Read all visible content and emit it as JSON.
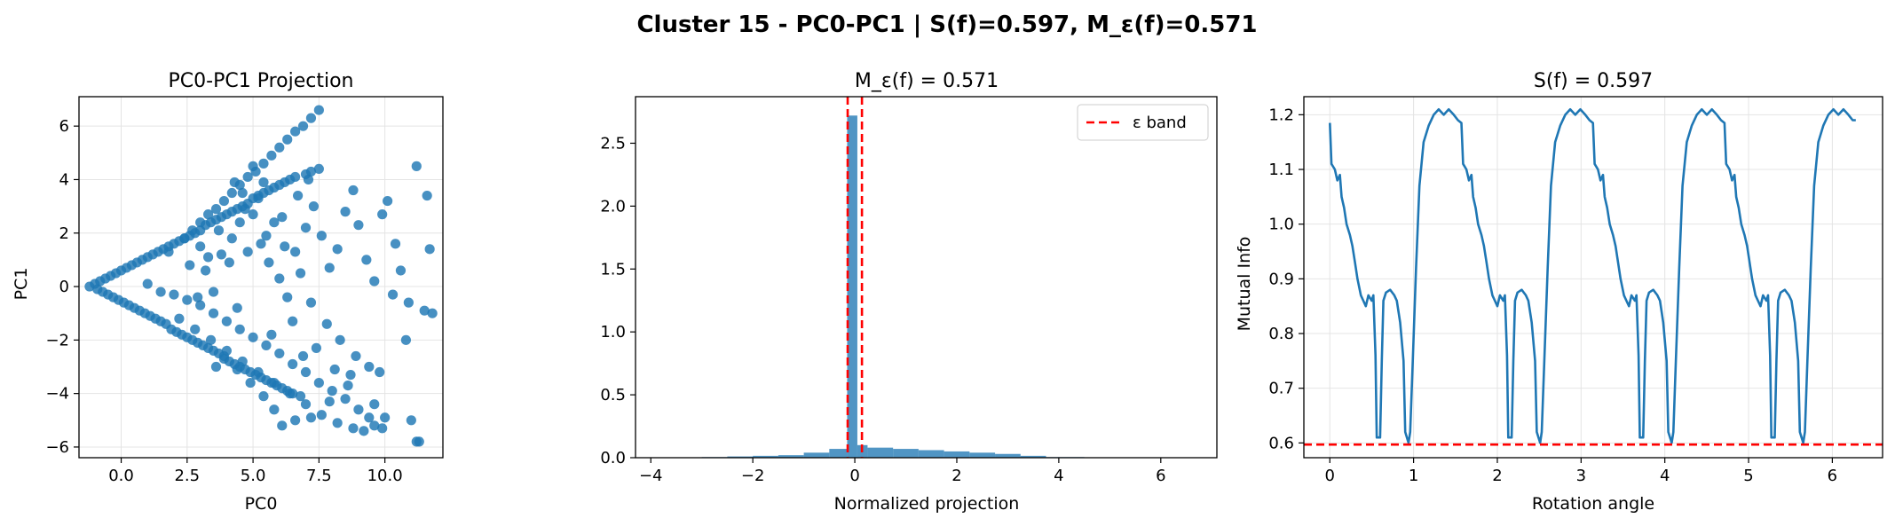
{
  "figure": {
    "suptitle": "Cluster 15 - PC0-PC1 | S(f)=0.597, M_ε(f)=0.571"
  },
  "chart_data": [
    {
      "type": "scatter",
      "title": "PC0-PC1 Projection",
      "xlabel": "PC0",
      "ylabel": "PC1",
      "xlim": [
        -1.6,
        12.2
      ],
      "ylim": [
        -6.4,
        7.1
      ],
      "xticks": [
        0.0,
        2.5,
        5.0,
        7.5,
        10.0
      ],
      "xtick_labels": [
        "0.0",
        "2.5",
        "5.0",
        "7.5",
        "10.0"
      ],
      "yticks": [
        -6,
        -4,
        -2,
        0,
        2,
        4,
        6
      ],
      "ytick_labels": [
        "−6",
        "−4",
        "−2",
        "0",
        "2",
        "4",
        "6"
      ],
      "grid": true,
      "color": "#1f77b4",
      "points": [
        [
          -1.2,
          0.0
        ],
        [
          -1.0,
          0.1
        ],
        [
          -0.9,
          -0.1
        ],
        [
          -0.8,
          0.2
        ],
        [
          -0.7,
          -0.2
        ],
        [
          -0.6,
          0.3
        ],
        [
          -0.5,
          -0.3
        ],
        [
          -0.4,
          0.4
        ],
        [
          -0.3,
          -0.4
        ],
        [
          -0.2,
          0.5
        ],
        [
          -0.1,
          -0.5
        ],
        [
          0.0,
          0.6
        ],
        [
          0.1,
          -0.6
        ],
        [
          0.2,
          0.7
        ],
        [
          0.3,
          -0.7
        ],
        [
          0.4,
          0.8
        ],
        [
          0.5,
          -0.8
        ],
        [
          0.6,
          0.9
        ],
        [
          0.7,
          -0.9
        ],
        [
          0.8,
          1.0
        ],
        [
          0.9,
          -1.0
        ],
        [
          1.0,
          1.1
        ],
        [
          1.1,
          -1.1
        ],
        [
          1.2,
          1.2
        ],
        [
          1.3,
          -1.2
        ],
        [
          1.4,
          1.3
        ],
        [
          1.5,
          -1.3
        ],
        [
          1.6,
          1.4
        ],
        [
          1.7,
          -1.4
        ],
        [
          1.8,
          1.5
        ],
        [
          1.9,
          -1.6
        ],
        [
          2.0,
          1.6
        ],
        [
          2.1,
          -1.7
        ],
        [
          2.2,
          1.7
        ],
        [
          2.3,
          -1.8
        ],
        [
          2.4,
          1.8
        ],
        [
          2.5,
          -1.9
        ],
        [
          2.6,
          1.9
        ],
        [
          2.7,
          -2.0
        ],
        [
          2.8,
          2.0
        ],
        [
          2.9,
          -2.1
        ],
        [
          3.0,
          2.1
        ],
        [
          3.1,
          -2.2
        ],
        [
          3.2,
          2.3
        ],
        [
          3.3,
          -2.3
        ],
        [
          3.4,
          2.4
        ],
        [
          3.5,
          -2.4
        ],
        [
          3.6,
          2.5
        ],
        [
          3.7,
          -2.5
        ],
        [
          3.8,
          2.6
        ],
        [
          3.9,
          -2.6
        ],
        [
          4.0,
          2.7
        ],
        [
          4.1,
          -2.8
        ],
        [
          4.2,
          2.8
        ],
        [
          4.3,
          -2.9
        ],
        [
          4.4,
          2.9
        ],
        [
          4.5,
          -3.0
        ],
        [
          4.6,
          3.0
        ],
        [
          4.7,
          -3.1
        ],
        [
          4.8,
          3.1
        ],
        [
          4.9,
          -3.2
        ],
        [
          5.0,
          3.3
        ],
        [
          5.1,
          -3.3
        ],
        [
          5.2,
          3.4
        ],
        [
          5.3,
          -3.4
        ],
        [
          5.4,
          3.5
        ],
        [
          5.5,
          -3.5
        ],
        [
          5.6,
          3.6
        ],
        [
          5.7,
          -3.6
        ],
        [
          5.8,
          3.7
        ],
        [
          5.9,
          -3.7
        ],
        [
          6.0,
          3.8
        ],
        [
          6.1,
          -3.8
        ],
        [
          6.2,
          3.9
        ],
        [
          6.3,
          -3.9
        ],
        [
          6.4,
          4.0
        ],
        [
          6.5,
          -4.0
        ],
        [
          6.6,
          4.1
        ],
        [
          6.8,
          -4.1
        ],
        [
          7.0,
          4.2
        ],
        [
          7.2,
          4.3
        ],
        [
          7.5,
          4.4
        ],
        [
          7.5,
          6.6
        ],
        [
          7.2,
          6.3
        ],
        [
          6.9,
          6.0
        ],
        [
          6.6,
          5.8
        ],
        [
          6.3,
          5.5
        ],
        [
          6.0,
          5.2
        ],
        [
          5.7,
          4.9
        ],
        [
          5.4,
          4.6
        ],
        [
          5.1,
          4.3
        ],
        [
          4.8,
          4.1
        ],
        [
          4.5,
          3.8
        ],
        [
          4.2,
          3.5
        ],
        [
          3.9,
          3.2
        ],
        [
          3.6,
          2.9
        ],
        [
          3.3,
          2.7
        ],
        [
          3.0,
          2.4
        ],
        [
          2.7,
          2.1
        ],
        [
          2.4,
          1.8
        ],
        [
          1.8,
          1.3
        ],
        [
          2.2,
          -1.2
        ],
        [
          2.8,
          -1.6
        ],
        [
          3.4,
          -2.0
        ],
        [
          4.0,
          -2.4
        ],
        [
          4.6,
          -2.8
        ],
        [
          5.2,
          -3.2
        ],
        [
          5.8,
          -3.6
        ],
        [
          6.4,
          -4.0
        ],
        [
          7.0,
          -4.4
        ],
        [
          7.6,
          -4.8
        ],
        [
          8.2,
          -5.1
        ],
        [
          8.8,
          -5.3
        ],
        [
          9.2,
          -5.4
        ],
        [
          9.6,
          -5.2
        ],
        [
          9.9,
          -5.3
        ],
        [
          9.4,
          -4.9
        ],
        [
          9.0,
          -4.6
        ],
        [
          8.5,
          -4.2
        ],
        [
          8.0,
          -3.9
        ],
        [
          7.5,
          -3.6
        ],
        [
          7.0,
          -3.2
        ],
        [
          6.5,
          -2.9
        ],
        [
          6.0,
          -2.5
        ],
        [
          5.5,
          -2.2
        ],
        [
          5.0,
          -1.9
        ],
        [
          4.5,
          -1.6
        ],
        [
          4.0,
          -1.3
        ],
        [
          3.5,
          -1.0
        ],
        [
          3.0,
          -0.7
        ],
        [
          2.5,
          -0.5
        ],
        [
          2.0,
          -0.3
        ],
        [
          1.5,
          -0.2
        ],
        [
          1.0,
          0.1
        ],
        [
          3.2,
          0.6
        ],
        [
          3.8,
          1.2
        ],
        [
          4.2,
          1.8
        ],
        [
          4.5,
          2.4
        ],
        [
          5.0,
          2.7
        ],
        [
          5.3,
          1.6
        ],
        [
          5.6,
          0.9
        ],
        [
          6.0,
          0.3
        ],
        [
          6.3,
          -0.4
        ],
        [
          6.6,
          1.3
        ],
        [
          7.0,
          2.2
        ],
        [
          7.3,
          3.0
        ],
        [
          7.6,
          1.9
        ],
        [
          7.9,
          0.7
        ],
        [
          8.2,
          1.4
        ],
        [
          8.5,
          2.8
        ],
        [
          8.8,
          3.6
        ],
        [
          9.0,
          2.3
        ],
        [
          9.3,
          1.0
        ],
        [
          9.6,
          0.2
        ],
        [
          9.9,
          2.7
        ],
        [
          10.1,
          3.2
        ],
        [
          10.4,
          1.6
        ],
        [
          10.6,
          0.6
        ],
        [
          10.3,
          -0.3
        ],
        [
          10.9,
          -0.6
        ],
        [
          11.2,
          4.5
        ],
        [
          11.6,
          3.4
        ],
        [
          11.7,
          1.4
        ],
        [
          11.5,
          -0.9
        ],
        [
          11.8,
          -1.0
        ],
        [
          11.0,
          -5.0
        ],
        [
          11.2,
          -5.8
        ],
        [
          11.3,
          -5.8
        ],
        [
          4.3,
          3.9
        ],
        [
          4.7,
          2.9
        ],
        [
          5.2,
          3.3
        ],
        [
          5.8,
          2.4
        ],
        [
          6.2,
          1.5
        ],
        [
          6.8,
          0.5
        ],
        [
          7.2,
          -0.6
        ],
        [
          7.8,
          -1.4
        ],
        [
          8.3,
          -2.0
        ],
        [
          8.9,
          -2.6
        ],
        [
          9.4,
          -3.0
        ],
        [
          9.8,
          -3.2
        ],
        [
          8.6,
          -3.7
        ],
        [
          7.9,
          -4.3
        ],
        [
          7.2,
          -4.9
        ],
        [
          6.6,
          -5.0
        ],
        [
          6.1,
          -5.2
        ],
        [
          5.8,
          -4.6
        ],
        [
          5.4,
          -4.1
        ],
        [
          4.9,
          -3.6
        ],
        [
          4.4,
          -3.1
        ],
        [
          3.9,
          -2.7
        ],
        [
          3.6,
          -3.0
        ],
        [
          6.5,
          -1.3
        ],
        [
          7.4,
          -2.3
        ],
        [
          8.1,
          -3.1
        ],
        [
          8.7,
          -3.3
        ],
        [
          9.6,
          -4.4
        ],
        [
          10.0,
          -4.9
        ],
        [
          10.8,
          -2.0
        ],
        [
          3.0,
          1.5
        ],
        [
          2.6,
          0.8
        ],
        [
          3.5,
          -0.2
        ],
        [
          4.1,
          0.9
        ],
        [
          4.8,
          1.3
        ],
        [
          5.5,
          1.9
        ],
        [
          6.1,
          2.6
        ],
        [
          6.7,
          3.4
        ],
        [
          7.1,
          4.0
        ],
        [
          5.0,
          4.5
        ],
        [
          5.4,
          3.9
        ],
        [
          4.6,
          3.5
        ],
        [
          3.7,
          2.1
        ],
        [
          3.3,
          1.1
        ],
        [
          2.9,
          -0.4
        ],
        [
          4.4,
          -0.8
        ],
        [
          5.7,
          -1.8
        ],
        [
          6.9,
          -2.6
        ]
      ]
    },
    {
      "type": "bar",
      "title": "M_ε(f) = 0.571",
      "xlabel": "Normalized projection",
      "ylabel": "",
      "xlim": [
        -4.3,
        7.1
      ],
      "ylim": [
        0,
        2.87
      ],
      "xticks": [
        -4,
        -2,
        0,
        2,
        4,
        6
      ],
      "xtick_labels": [
        "−4",
        "−2",
        "0",
        "2",
        "4",
        "6"
      ],
      "yticks": [
        0.0,
        0.5,
        1.0,
        1.5,
        2.0,
        2.5
      ],
      "ytick_labels": [
        "0.0",
        "0.5",
        "1.0",
        "1.5",
        "2.0",
        "2.5"
      ],
      "grid": false,
      "color": "#1f77b4",
      "bins": [
        {
          "x0": -3.0,
          "x1": -2.5,
          "h": 0.005
        },
        {
          "x0": -2.5,
          "x1": -2.0,
          "h": 0.01
        },
        {
          "x0": -2.0,
          "x1": -1.5,
          "h": 0.015
        },
        {
          "x0": -1.5,
          "x1": -1.0,
          "h": 0.02
        },
        {
          "x0": -1.0,
          "x1": -0.5,
          "h": 0.04
        },
        {
          "x0": -0.5,
          "x1": -0.15,
          "h": 0.07
        },
        {
          "x0": -0.15,
          "x1": 0.05,
          "h": 2.72
        },
        {
          "x0": 0.05,
          "x1": 0.25,
          "h": 0.1
        },
        {
          "x0": 0.25,
          "x1": 0.75,
          "h": 0.08
        },
        {
          "x0": 0.75,
          "x1": 1.25,
          "h": 0.07
        },
        {
          "x0": 1.25,
          "x1": 1.75,
          "h": 0.06
        },
        {
          "x0": 1.75,
          "x1": 2.25,
          "h": 0.05
        },
        {
          "x0": 2.25,
          "x1": 2.75,
          "h": 0.04
        },
        {
          "x0": 2.75,
          "x1": 3.25,
          "h": 0.03
        },
        {
          "x0": 3.25,
          "x1": 3.75,
          "h": 0.015
        },
        {
          "x0": 3.75,
          "x1": 4.5,
          "h": 0.005
        }
      ],
      "epsilon_lines": [
        -0.14,
        0.14
      ],
      "legend": {
        "label": "ε band",
        "location": "upper right",
        "color": "#ff0000"
      }
    },
    {
      "type": "line",
      "title": "S(f) = 0.597",
      "xlabel": "Rotation angle",
      "ylabel": "Mutual Info",
      "xlim": [
        -0.31,
        6.6
      ],
      "ylim": [
        0.573,
        1.233
      ],
      "xticks": [
        0,
        1,
        2,
        3,
        4,
        5,
        6
      ],
      "xtick_labels": [
        "0",
        "1",
        "2",
        "3",
        "4",
        "5",
        "6"
      ],
      "yticks": [
        0.6,
        0.7,
        0.8,
        0.9,
        1.0,
        1.1,
        1.2
      ],
      "ytick_labels": [
        "0.6",
        "0.7",
        "0.8",
        "0.9",
        "1.0",
        "1.1",
        "1.2"
      ],
      "grid": true,
      "color": "#1f77b4",
      "hline": {
        "y": 0.597,
        "color": "#ff0000"
      },
      "cycle_period": 1.5708,
      "cycle_profile": [
        [
          0.0,
          1.185
        ],
        [
          0.02,
          1.11
        ],
        [
          0.06,
          1.1
        ],
        [
          0.09,
          1.08
        ],
        [
          0.12,
          1.09
        ],
        [
          0.14,
          1.05
        ],
        [
          0.17,
          1.03
        ],
        [
          0.2,
          1.0
        ],
        [
          0.24,
          0.98
        ],
        [
          0.27,
          0.96
        ],
        [
          0.3,
          0.93
        ],
        [
          0.33,
          0.9
        ],
        [
          0.37,
          0.87
        ],
        [
          0.4,
          0.86
        ],
        [
          0.43,
          0.85
        ],
        [
          0.46,
          0.87
        ],
        [
          0.5,
          0.86
        ],
        [
          0.52,
          0.87
        ],
        [
          0.545,
          0.76
        ],
        [
          0.56,
          0.61
        ],
        [
          0.6,
          0.61
        ],
        [
          0.62,
          0.75
        ],
        [
          0.64,
          0.86
        ],
        [
          0.67,
          0.875
        ],
        [
          0.72,
          0.88
        ],
        [
          0.77,
          0.87
        ],
        [
          0.8,
          0.86
        ],
        [
          0.84,
          0.82
        ],
        [
          0.88,
          0.75
        ],
        [
          0.9,
          0.62
        ],
        [
          0.94,
          0.6
        ],
        [
          0.96,
          0.62
        ],
        [
          0.99,
          0.75
        ],
        [
          1.03,
          0.92
        ],
        [
          1.07,
          1.07
        ],
        [
          1.12,
          1.15
        ],
        [
          1.18,
          1.18
        ],
        [
          1.24,
          1.2
        ],
        [
          1.3,
          1.21
        ],
        [
          1.36,
          1.2
        ],
        [
          1.42,
          1.21
        ],
        [
          1.48,
          1.2
        ],
        [
          1.53,
          1.19
        ],
        [
          1.5708,
          1.185
        ]
      ],
      "x_end": 6.28
    }
  ]
}
